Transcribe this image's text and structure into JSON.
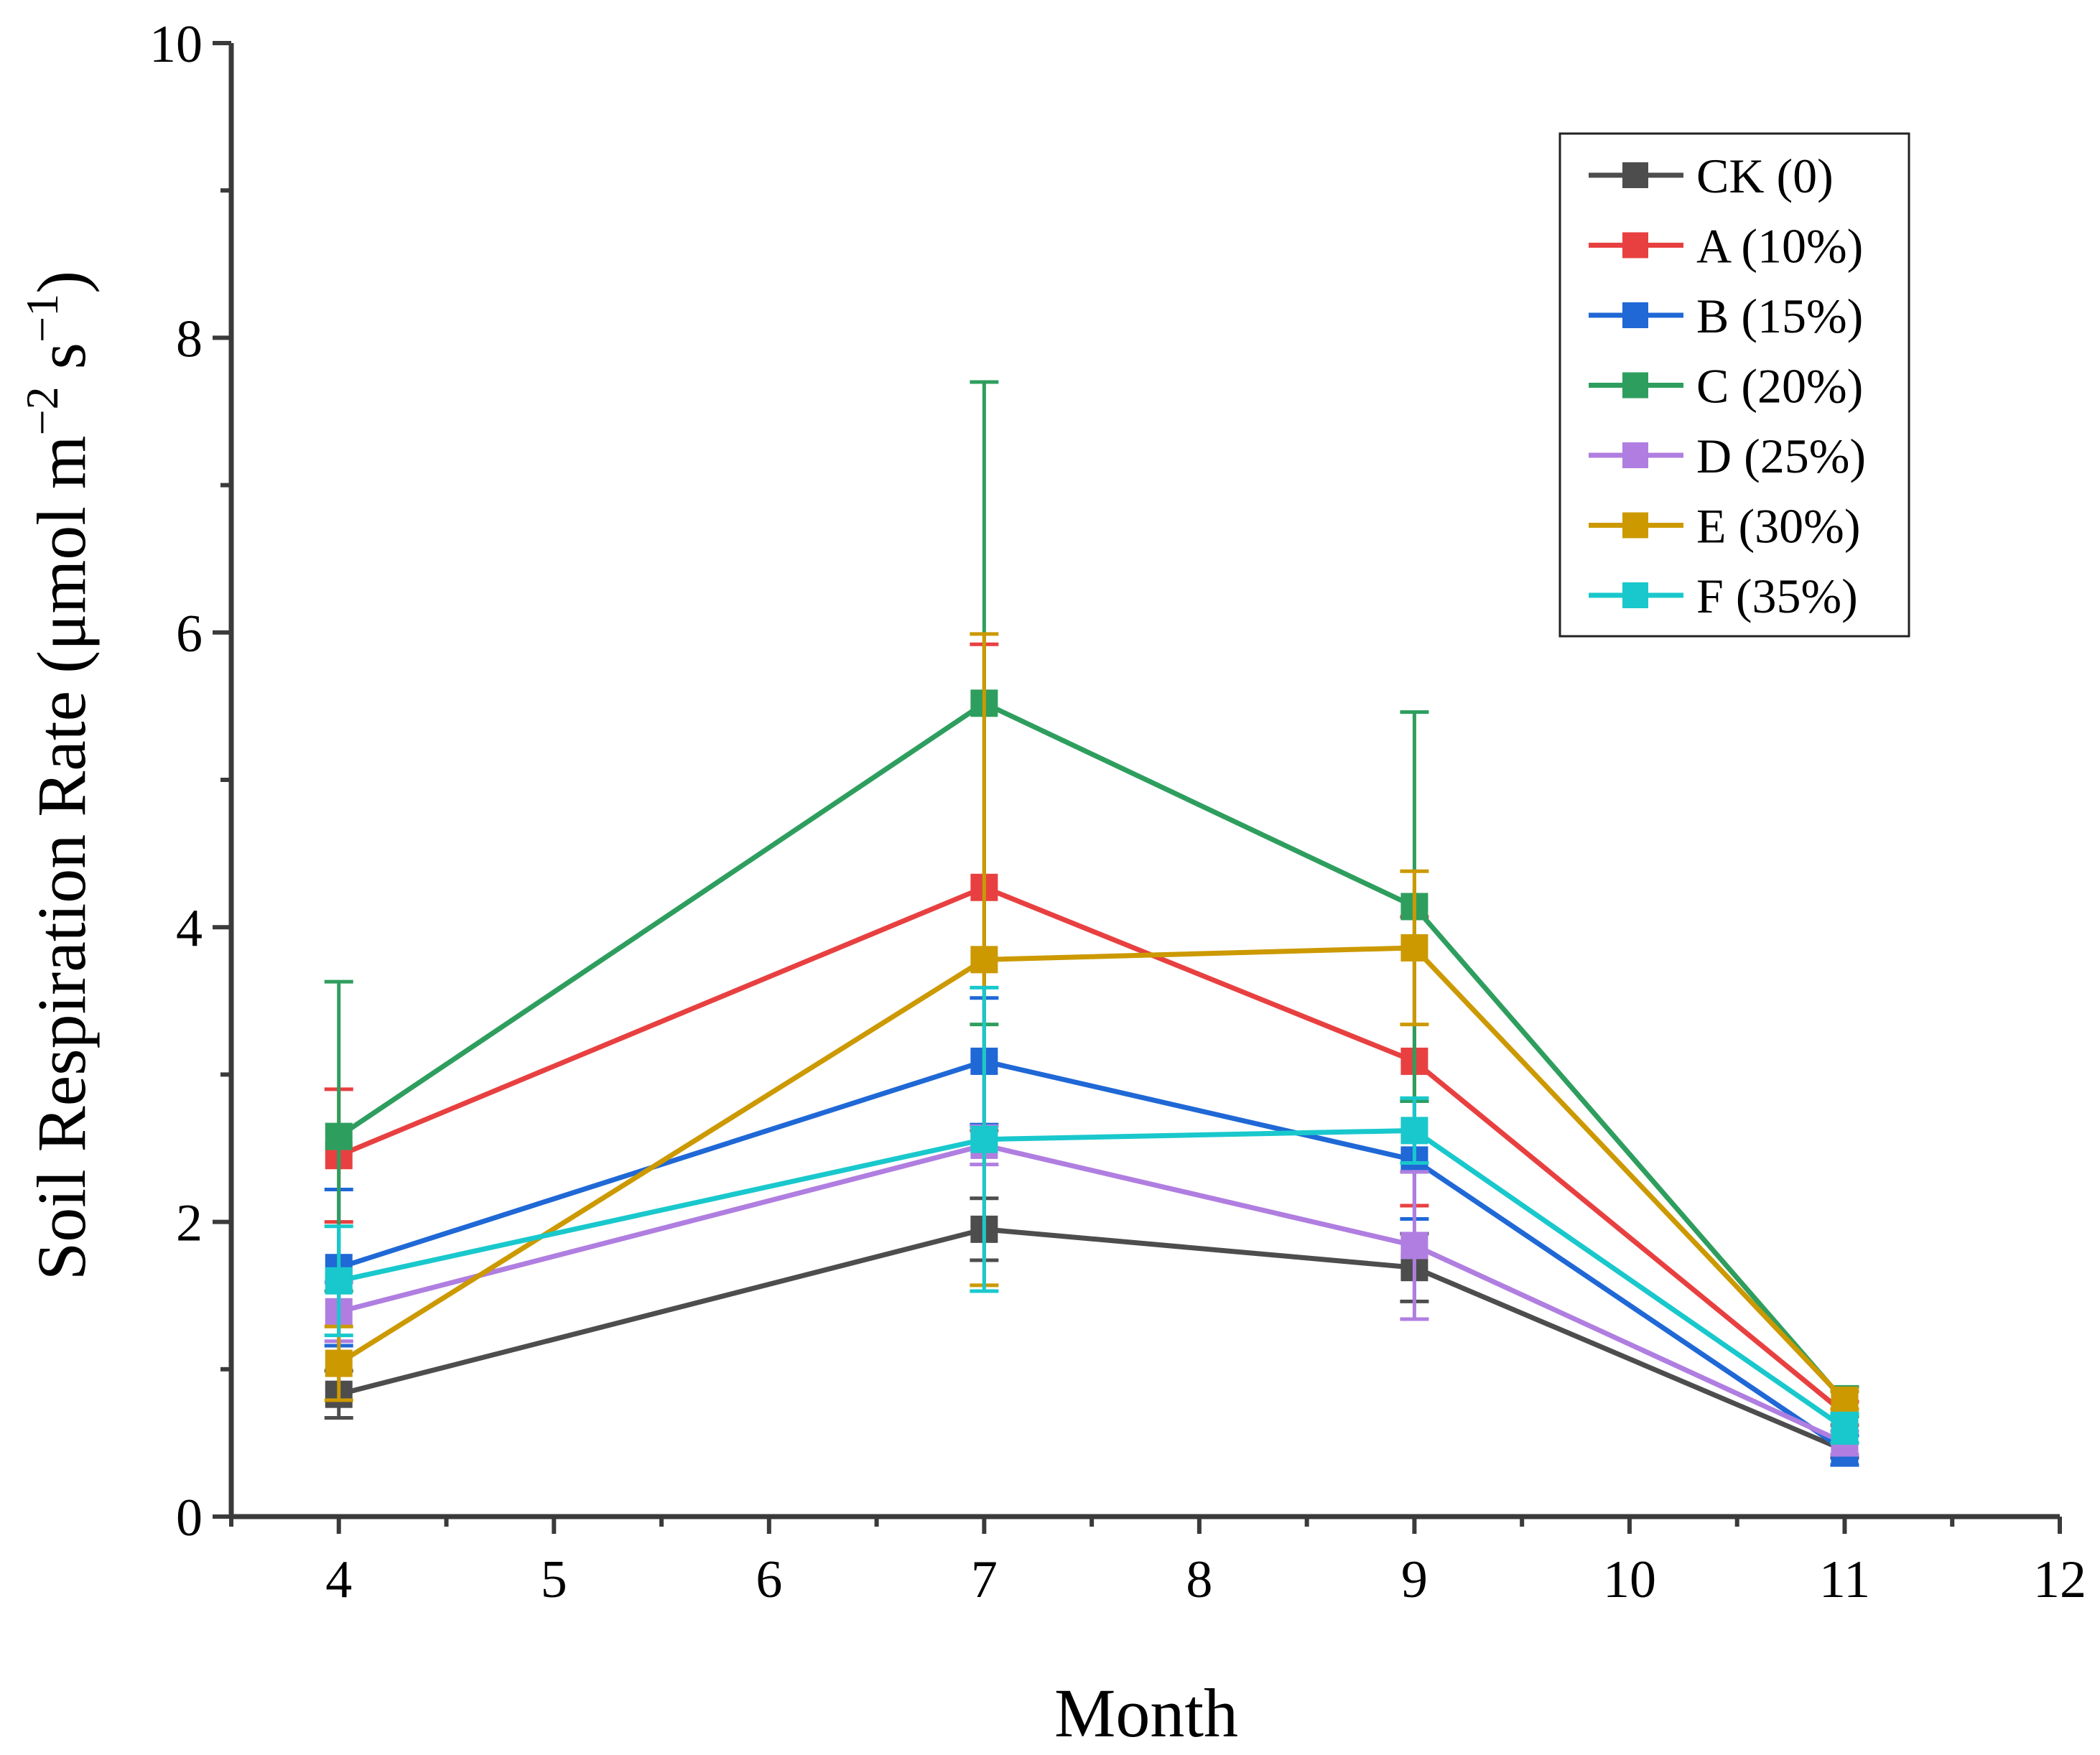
{
  "chart_data": {
    "type": "line",
    "title": "",
    "xlabel": "Month",
    "ylabel": {
      "main": "Soil Respiration Rate (μmol m",
      "sup1": "−2",
      "mid": " s",
      "sup2": "−1",
      "end": ")"
    },
    "xlim": [
      3.5,
      12
    ],
    "ylim": [
      0,
      10
    ],
    "x_ticks": [
      4,
      5,
      6,
      7,
      8,
      9,
      10,
      11,
      12
    ],
    "y_ticks": [
      0,
      2,
      4,
      6,
      8,
      10
    ],
    "x": [
      4,
      7,
      9,
      11
    ],
    "legend_position": "top-right",
    "series": [
      {
        "name": "CK (0)",
        "color": "#4d4d4d",
        "values": [
          0.83,
          1.95,
          1.69,
          0.45
        ],
        "errors": [
          0.16,
          0.21,
          0.23,
          0.05
        ]
      },
      {
        "name": "A (10%)",
        "color": "#e84040",
        "values": [
          2.45,
          4.27,
          3.09,
          0.7
        ],
        "errors": [
          0.45,
          1.65,
          0.98,
          0.08
        ]
      },
      {
        "name": "B (15%)",
        "color": "#1f68d6",
        "values": [
          1.69,
          3.09,
          2.42,
          0.45
        ],
        "errors": [
          0.53,
          0.43,
          0.4,
          0.1
        ]
      },
      {
        "name": "C (20%)",
        "color": "#2e9e5e",
        "values": [
          2.58,
          5.52,
          4.14,
          0.78
        ],
        "errors": [
          1.05,
          2.18,
          1.32,
          0.1
        ]
      },
      {
        "name": "D (25%)",
        "color": "#b07ee0",
        "values": [
          1.39,
          2.52,
          1.84,
          0.5
        ],
        "errors": [
          0.2,
          0.13,
          0.5,
          0.08
        ]
      },
      {
        "name": "E (30%)",
        "color": "#cc9900",
        "values": [
          1.04,
          3.78,
          3.86,
          0.79
        ],
        "errors": [
          0.25,
          2.21,
          0.52,
          0.06
        ]
      },
      {
        "name": "F (35%)",
        "color": "#19c8cc",
        "values": [
          1.6,
          2.56,
          2.62,
          0.6
        ],
        "errors": [
          0.37,
          1.03,
          0.22,
          0.1
        ]
      }
    ]
  }
}
